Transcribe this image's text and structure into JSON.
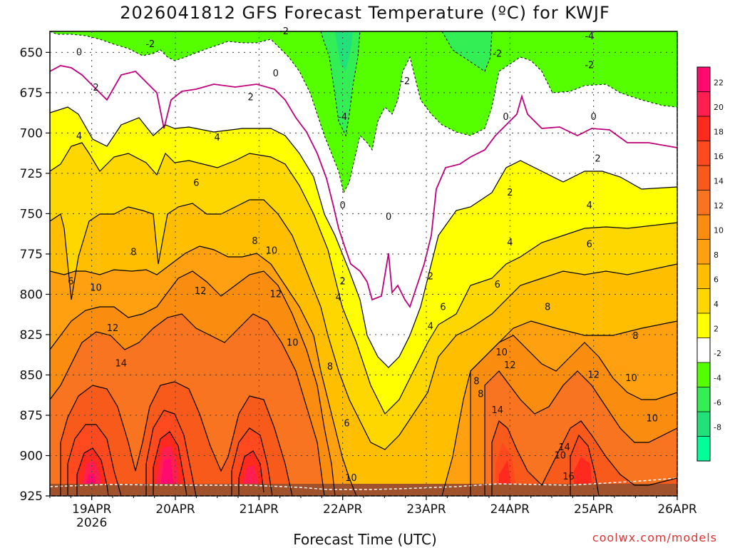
{
  "chart_data": {
    "type": "heatmap",
    "title": "2026041812 GFS Forecast Temperature (ºC) for KWJF",
    "xlabel": "Forecast Time (UTC)",
    "credit": "coolwx.com/models",
    "ylabel": "Pressure (hPa)",
    "y_axis": {
      "ticks": [
        650,
        675,
        700,
        725,
        750,
        775,
        800,
        825,
        850,
        875,
        900,
        925
      ],
      "range": [
        925,
        637
      ]
    },
    "x_axis": {
      "ticks": [
        "19APR",
        "20APR",
        "21APR",
        "22APR",
        "23APR",
        "24APR",
        "25APR",
        "26APR"
      ],
      "first_tick_sublabel": "2026",
      "range_days": [
        18.5,
        26.0
      ]
    },
    "colorbar": {
      "levels": [
        22,
        20,
        18,
        16,
        14,
        12,
        10,
        8,
        6,
        4,
        2,
        -2,
        -4,
        -6,
        -8
      ],
      "colors": [
        "#ff0a6e",
        "#ff1e50",
        "#ff2a1e",
        "#ff4a20",
        "#f85a1c",
        "#f87420",
        "#fa8c10",
        "#ffa010",
        "#ffbe00",
        "#ffd700",
        "#ffff00",
        "#ffffff",
        "#55ff00",
        "#33ee55",
        "#22e07a",
        "#00ff99"
      ]
    },
    "surface_pressure_hpa": 928,
    "temperature_max_by_time": {
      "comment": "Approximate profile of temperature along forecast time (surface-level max, degC)",
      "days": [
        18.7,
        19.0,
        19.3,
        19.6,
        19.9,
        20.2,
        20.5,
        20.9,
        21.2,
        21.5,
        21.9,
        22.2,
        22.5,
        22.9,
        23.3,
        23.6,
        23.9,
        24.2,
        24.6,
        24.9,
        25.3,
        25.6,
        26.0
      ],
      "values": [
        16,
        22,
        18,
        14,
        22,
        18,
        14,
        20,
        16,
        12,
        10,
        4,
        2,
        8,
        10,
        12,
        18,
        12,
        14,
        18,
        12,
        10,
        12
      ]
    },
    "contour_labels": [
      {
        "text": "0",
        "x_day": 18.85,
        "p": 650
      },
      {
        "text": "0",
        "x_day": 21.2,
        "p": 663
      },
      {
        "text": "0",
        "x_day": 22.0,
        "p": 745
      },
      {
        "text": "0",
        "x_day": 22.55,
        "p": 752
      },
      {
        "text": "0",
        "x_day": 23.95,
        "p": 690
      },
      {
        "text": "0",
        "x_day": 25.0,
        "p": 690
      },
      {
        "text": "-2",
        "x_day": 19.7,
        "p": 645
      },
      {
        "text": "-2",
        "x_day": 21.3,
        "p": 637
      },
      {
        "text": "-2",
        "x_day": 22.75,
        "p": 668
      },
      {
        "text": "-2",
        "x_day": 23.85,
        "p": 651
      },
      {
        "text": "-2",
        "x_day": 24.95,
        "p": 658
      },
      {
        "text": "-4",
        "x_day": 22.0,
        "p": 690
      },
      {
        "text": "-4",
        "x_day": 24.95,
        "p": 640
      },
      {
        "text": "2",
        "x_day": 19.05,
        "p": 672
      },
      {
        "text": "2",
        "x_day": 20.9,
        "p": 678
      },
      {
        "text": "2",
        "x_day": 22.0,
        "p": 792
      },
      {
        "text": "2",
        "x_day": 23.05,
        "p": 789
      },
      {
        "text": "2",
        "x_day": 24.0,
        "p": 737
      },
      {
        "text": "2",
        "x_day": 25.05,
        "p": 716
      },
      {
        "text": "4",
        "x_day": 18.85,
        "p": 702
      },
      {
        "text": "4",
        "x_day": 20.5,
        "p": 703
      },
      {
        "text": "4",
        "x_day": 21.95,
        "p": 802
      },
      {
        "text": "4",
        "x_day": 23.05,
        "p": 820
      },
      {
        "text": "4",
        "x_day": 24.0,
        "p": 768
      },
      {
        "text": "4",
        "x_day": 24.95,
        "p": 745
      },
      {
        "text": "6",
        "x_day": 18.75,
        "p": 792
      },
      {
        "text": "6",
        "x_day": 20.25,
        "p": 731
      },
      {
        "text": "6",
        "x_day": 22.05,
        "p": 880
      },
      {
        "text": "6",
        "x_day": 23.2,
        "p": 808
      },
      {
        "text": "6",
        "x_day": 23.85,
        "p": 794
      },
      {
        "text": "6",
        "x_day": 24.95,
        "p": 769
      },
      {
        "text": "8",
        "x_day": 19.5,
        "p": 774
      },
      {
        "text": "8",
        "x_day": 20.95,
        "p": 767
      },
      {
        "text": "8",
        "x_day": 21.85,
        "p": 845
      },
      {
        "text": "8",
        "x_day": 23.6,
        "p": 854
      },
      {
        "text": "8",
        "x_day": 23.65,
        "p": 862
      },
      {
        "text": "8",
        "x_day": 24.45,
        "p": 808
      },
      {
        "text": "8",
        "x_day": 25.5,
        "p": 826
      },
      {
        "text": "10",
        "x_day": 19.05,
        "p": 796
      },
      {
        "text": "10",
        "x_day": 21.15,
        "p": 773
      },
      {
        "text": "10",
        "x_day": 21.4,
        "p": 830
      },
      {
        "text": "10",
        "x_day": 22.1,
        "p": 914
      },
      {
        "text": "10",
        "x_day": 23.9,
        "p": 836
      },
      {
        "text": "10",
        "x_day": 24.6,
        "p": 900
      },
      {
        "text": "10",
        "x_day": 25.45,
        "p": 852
      },
      {
        "text": "10",
        "x_day": 25.7,
        "p": 877
      },
      {
        "text": "12",
        "x_day": 19.25,
        "p": 821
      },
      {
        "text": "12",
        "x_day": 20.3,
        "p": 798
      },
      {
        "text": "12",
        "x_day": 21.2,
        "p": 800
      },
      {
        "text": "12",
        "x_day": 24.0,
        "p": 844
      },
      {
        "text": "12",
        "x_day": 25.0,
        "p": 850
      },
      {
        "text": "14",
        "x_day": 19.35,
        "p": 843
      },
      {
        "text": "14",
        "x_day": 23.85,
        "p": 872
      },
      {
        "text": "14",
        "x_day": 24.65,
        "p": 895
      },
      {
        "text": "16",
        "x_day": 24.7,
        "p": 913
      }
    ]
  }
}
